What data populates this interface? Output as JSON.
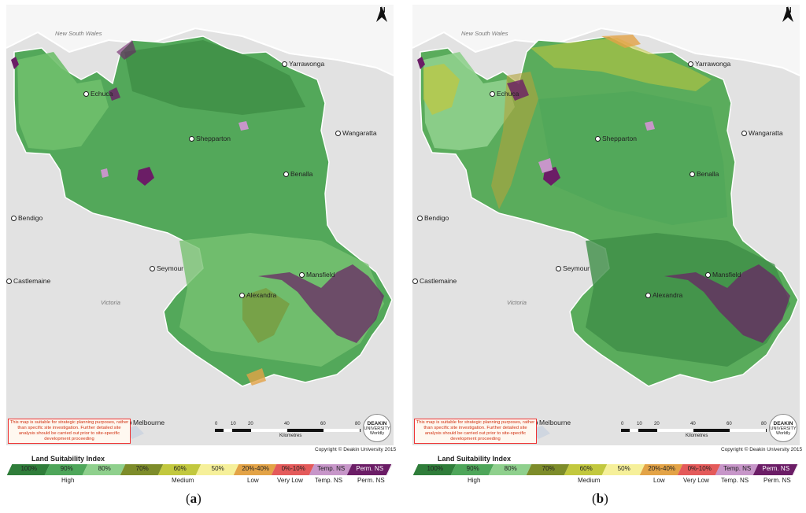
{
  "panels": [
    {
      "id": "a",
      "caption_open": "(",
      "caption_letter": "a",
      "caption_close": ")"
    },
    {
      "id": "b",
      "caption_open": "(",
      "caption_letter": "b",
      "caption_close": ")"
    }
  ],
  "map": {
    "north_label": "N",
    "region_labels": {
      "nsw": "New South Wales",
      "victoria": "Victoria"
    },
    "places": {
      "yarrawonga": "Yarrawonga",
      "echuca": "Echuca",
      "shepparton": "Shepparton",
      "wangaratta": "Wangaratta",
      "benalla": "Benalla",
      "bendigo": "Bendigo",
      "seymour": "Seymour",
      "mansfield": "Mansfield",
      "castlemaine": "Castlemaine",
      "alexandra": "Alexandra",
      "melbourne": "Melbourne"
    },
    "disclaimer": "This map is suitable for strategic planning purposes, rather than specific site investigation. Further detailed site analysis should be carried out prior to site-specific development proceeding",
    "logo_line1": "DEAKIN",
    "logo_line2": "UNIVERSITY",
    "logo_line3": "Worldly",
    "scale": {
      "ticks": [
        "0",
        "10",
        "20",
        "40",
        "60",
        "80"
      ],
      "unit": "Kilometres"
    },
    "copyright": "Copyright © Deakin University 2015"
  },
  "legend": {
    "title": "Land Suitability Index",
    "classes": [
      {
        "label": "100%",
        "color": "#2f7d3a"
      },
      {
        "label": "90%",
        "color": "#4ea65a"
      },
      {
        "label": "80%",
        "color": "#8fd08d"
      },
      {
        "label": "70%",
        "color": "#7d8c2a"
      },
      {
        "label": "60%",
        "color": "#c2c83e"
      },
      {
        "label": "50%",
        "color": "#f6f09a"
      },
      {
        "label": "20%-40%",
        "color": "#e3a346"
      },
      {
        "label": "0%-10%",
        "color": "#e45a5a"
      },
      {
        "label": "Temp. NS",
        "color": "#c796c9"
      },
      {
        "label": "Perm. NS",
        "color": "#6b1d66"
      }
    ],
    "groups": [
      "High",
      "Medium",
      "Low",
      "Very Low",
      "Temp. NS",
      "Perm. NS"
    ]
  }
}
